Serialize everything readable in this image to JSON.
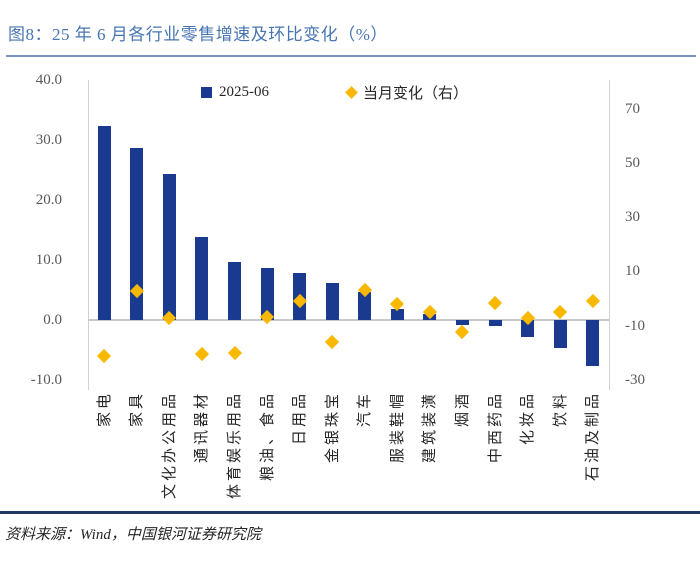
{
  "title": "图8：25 年 6 月各行业零售增速及环比变化（%）",
  "source_note": "资料来源：Wind，中国银河证券研究院",
  "legend": {
    "bar_label": "2025-06",
    "diamond_label": "当月变化（右）"
  },
  "colors": {
    "bar": "#1A3A8F",
    "diamond": "#F9B800",
    "title_text": "#4675B2",
    "title_rule": "#7A93C0",
    "footer_rule": "#203864",
    "axis_text": "#595959",
    "axis_line": "#D2D2D2",
    "zero_line": "#C8C8C8"
  },
  "chart_data": {
    "type": "bar",
    "title": "25 年 6 月各行业零售增速及环比变化（%）",
    "categories": [
      "家电",
      "家具",
      "文化办公用品",
      "通讯器材",
      "体育娱乐用品",
      "粮油、食品",
      "日用品",
      "金银珠宝",
      "汽车",
      "服装鞋帽",
      "建筑装潢",
      "烟酒",
      "中西药品",
      "化妆品",
      "饮料",
      "石油及制品"
    ],
    "series": [
      {
        "name": "2025-06",
        "type": "bar",
        "axis": "left",
        "values": [
          32.4,
          28.7,
          24.4,
          13.9,
          9.7,
          8.7,
          7.8,
          6.1,
          4.6,
          1.9,
          1.0,
          -0.8,
          -1.0,
          -2.8,
          -4.6,
          -7.6
        ]
      },
      {
        "name": "当月变化（右）",
        "type": "scatter",
        "marker": "diamond",
        "axis": "right",
        "values": [
          -21.0,
          2.9,
          -7.0,
          -20.4,
          -20.0,
          -6.8,
          -1.0,
          -16.0,
          3.3,
          -2.0,
          -5.0,
          -12.3,
          -1.5,
          -7.0,
          -5.0,
          -0.9
        ]
      }
    ],
    "left_axis": {
      "ticks": [
        "40.0",
        "30.0",
        "20.0",
        "10.0",
        "0.0",
        "-10.0"
      ],
      "min": -10,
      "max": 40
    },
    "right_axis": {
      "ticks": [
        "70",
        "50",
        "30",
        "10",
        "-10",
        "-30"
      ],
      "min": -30,
      "max": 80.5
    },
    "legend_position": "top",
    "grid": "off"
  }
}
